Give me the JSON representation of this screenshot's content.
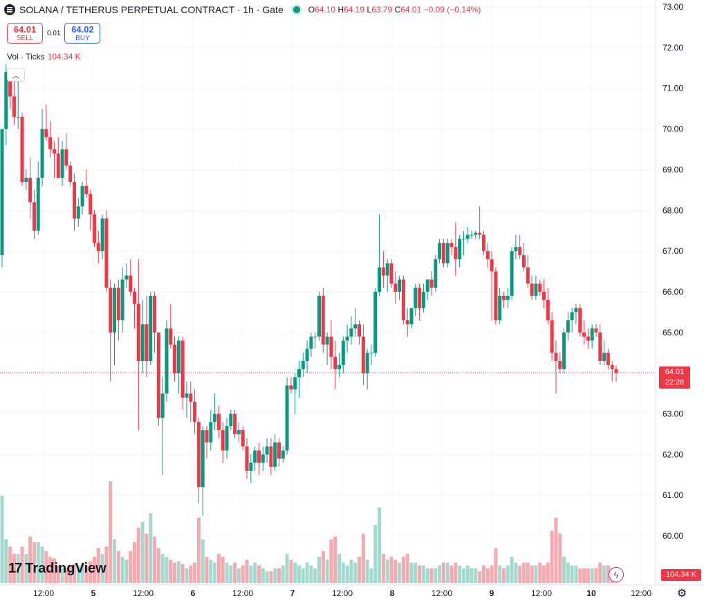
{
  "legend": {
    "title": "SOLANA / TETHERUS PERPETUAL CONTRACT · 1h · Gate",
    "open_label": "O",
    "open": "64.10",
    "high_label": "H",
    "high": "64.19",
    "low_label": "L",
    "low": "63.79",
    "close_label": "C",
    "close": "64.01",
    "change": "−0.09 (−0.14%)"
  },
  "trade": {
    "sell_price": "64.01",
    "sell_label": "SELL",
    "spread": "0.01",
    "buy_price": "64.02",
    "buy_label": "BUY"
  },
  "volume": {
    "label": "Vol · Ticks",
    "value": "104.34 K"
  },
  "collapse_glyph": "︿",
  "logo": {
    "icon": "17",
    "text": "TradingView"
  },
  "last_price": {
    "price": "64.01",
    "countdown": "22:28"
  },
  "volume_tag": "104.34 K",
  "flash_glyph": "ϟ",
  "settings_glyph": "⚙",
  "colors": {
    "up": "#089981",
    "down": "#f23645",
    "up_vol": "#a3d9cf",
    "down_vol": "#f6a9ae",
    "grid": "#f0f3fa"
  },
  "chart_data": {
    "type": "candlestick",
    "timeframe": "1h",
    "y_ticks": [
      "60.00",
      "61.00",
      "62.00",
      "63.00",
      "64.00",
      "65.00",
      "66.00",
      "67.00",
      "68.00",
      "69.00",
      "70.00",
      "71.00",
      "72.00",
      "73.00"
    ],
    "x_ticks": [
      "12:00",
      "5",
      "12:00",
      "6",
      "12:00",
      "7",
      "12:00",
      "8",
      "12:00",
      "9",
      "12:00",
      "10",
      "12:00"
    ],
    "last_price": 64.01,
    "candles": [
      {
        "o": 66.9,
        "h": 70.0,
        "l": 66.6,
        "c": 70.0,
        "v": 0.6
      },
      {
        "o": 70.0,
        "h": 71.6,
        "l": 69.6,
        "c": 71.4,
        "v": 0.3
      },
      {
        "o": 71.4,
        "h": 71.5,
        "l": 70.5,
        "c": 70.8,
        "v": 0.25
      },
      {
        "o": 70.8,
        "h": 71.2,
        "l": 70.1,
        "c": 70.3,
        "v": 0.2
      },
      {
        "o": 70.3,
        "h": 71.2,
        "l": 70.0,
        "c": 70.3,
        "v": 0.2
      },
      {
        "o": 70.3,
        "h": 70.4,
        "l": 68.6,
        "c": 68.7,
        "v": 0.25
      },
      {
        "o": 68.7,
        "h": 69.0,
        "l": 68.5,
        "c": 68.8,
        "v": 0.2
      },
      {
        "o": 68.8,
        "h": 69.3,
        "l": 67.8,
        "c": 68.2,
        "v": 0.32
      },
      {
        "o": 68.2,
        "h": 68.5,
        "l": 67.3,
        "c": 67.5,
        "v": 0.28
      },
      {
        "o": 67.5,
        "h": 69.2,
        "l": 67.4,
        "c": 68.8,
        "v": 0.28
      },
      {
        "o": 68.8,
        "h": 70.5,
        "l": 68.6,
        "c": 70.0,
        "v": 0.25
      },
      {
        "o": 70.0,
        "h": 70.6,
        "l": 69.7,
        "c": 69.8,
        "v": 0.22
      },
      {
        "o": 69.8,
        "h": 70.2,
        "l": 69.3,
        "c": 69.5,
        "v": 0.18
      },
      {
        "o": 69.5,
        "h": 69.7,
        "l": 68.8,
        "c": 69.4,
        "v": 0.17
      },
      {
        "o": 69.4,
        "h": 69.8,
        "l": 68.8,
        "c": 68.8,
        "v": 0.12
      },
      {
        "o": 68.8,
        "h": 69.7,
        "l": 68.6,
        "c": 69.5,
        "v": 0.1
      },
      {
        "o": 69.5,
        "h": 69.9,
        "l": 69.0,
        "c": 69.1,
        "v": 0.1
      },
      {
        "o": 69.1,
        "h": 69.2,
        "l": 68.6,
        "c": 68.7,
        "v": 0.12
      },
      {
        "o": 68.7,
        "h": 68.9,
        "l": 67.5,
        "c": 67.8,
        "v": 0.13
      },
      {
        "o": 67.8,
        "h": 68.3,
        "l": 67.6,
        "c": 68.1,
        "v": 0.12
      },
      {
        "o": 68.1,
        "h": 68.7,
        "l": 67.9,
        "c": 68.6,
        "v": 0.13
      },
      {
        "o": 68.6,
        "h": 69.0,
        "l": 68.3,
        "c": 68.4,
        "v": 0.12
      },
      {
        "o": 68.4,
        "h": 68.5,
        "l": 67.5,
        "c": 67.9,
        "v": 0.15
      },
      {
        "o": 67.9,
        "h": 68.0,
        "l": 67.1,
        "c": 67.2,
        "v": 0.18
      },
      {
        "o": 67.2,
        "h": 67.5,
        "l": 66.7,
        "c": 67.0,
        "v": 0.24
      },
      {
        "o": 67.0,
        "h": 67.9,
        "l": 66.8,
        "c": 67.8,
        "v": 0.2
      },
      {
        "o": 67.8,
        "h": 68.0,
        "l": 66.0,
        "c": 66.1,
        "v": 0.25
      },
      {
        "o": 66.1,
        "h": 66.3,
        "l": 63.8,
        "c": 65.0,
        "v": 0.7
      },
      {
        "o": 65.0,
        "h": 66.2,
        "l": 64.2,
        "c": 66.1,
        "v": 0.3
      },
      {
        "o": 66.1,
        "h": 66.3,
        "l": 64.8,
        "c": 65.3,
        "v": 0.22
      },
      {
        "o": 65.3,
        "h": 66.6,
        "l": 65.0,
        "c": 66.3,
        "v": 0.18
      },
      {
        "o": 66.3,
        "h": 66.7,
        "l": 66.1,
        "c": 66.4,
        "v": 0.16
      },
      {
        "o": 66.4,
        "h": 66.8,
        "l": 65.9,
        "c": 66.0,
        "v": 0.22
      },
      {
        "o": 66.0,
        "h": 66.1,
        "l": 65.1,
        "c": 65.7,
        "v": 0.28
      },
      {
        "o": 65.7,
        "h": 66.8,
        "l": 62.6,
        "c": 64.3,
        "v": 0.38
      },
      {
        "o": 64.3,
        "h": 65.8,
        "l": 64.0,
        "c": 65.2,
        "v": 0.42
      },
      {
        "o": 65.2,
        "h": 65.9,
        "l": 63.9,
        "c": 64.3,
        "v": 0.34
      },
      {
        "o": 64.3,
        "h": 66.0,
        "l": 64.2,
        "c": 65.9,
        "v": 0.48
      },
      {
        "o": 65.9,
        "h": 66.0,
        "l": 64.5,
        "c": 65.0,
        "v": 0.32
      },
      {
        "o": 65.0,
        "h": 65.0,
        "l": 62.7,
        "c": 62.9,
        "v": 0.24
      },
      {
        "o": 62.9,
        "h": 63.9,
        "l": 61.5,
        "c": 63.5,
        "v": 0.2
      },
      {
        "o": 63.5,
        "h": 65.3,
        "l": 63.3,
        "c": 65.1,
        "v": 0.18
      },
      {
        "o": 65.1,
        "h": 65.7,
        "l": 64.6,
        "c": 64.7,
        "v": 0.16
      },
      {
        "o": 64.7,
        "h": 64.9,
        "l": 63.8,
        "c": 64.0,
        "v": 0.14
      },
      {
        "o": 64.0,
        "h": 64.9,
        "l": 63.5,
        "c": 64.8,
        "v": 0.15
      },
      {
        "o": 64.8,
        "h": 64.9,
        "l": 63.1,
        "c": 63.4,
        "v": 0.13
      },
      {
        "o": 63.4,
        "h": 63.8,
        "l": 62.9,
        "c": 63.5,
        "v": 0.1
      },
      {
        "o": 63.5,
        "h": 63.8,
        "l": 62.8,
        "c": 63.3,
        "v": 0.12
      },
      {
        "o": 63.3,
        "h": 63.6,
        "l": 62.5,
        "c": 62.8,
        "v": 0.14
      },
      {
        "o": 62.8,
        "h": 62.9,
        "l": 60.8,
        "c": 61.2,
        "v": 0.45
      },
      {
        "o": 61.2,
        "h": 62.7,
        "l": 60.5,
        "c": 62.6,
        "v": 0.3
      },
      {
        "o": 62.6,
        "h": 62.7,
        "l": 61.9,
        "c": 62.3,
        "v": 0.18
      },
      {
        "o": 62.3,
        "h": 63.1,
        "l": 62.1,
        "c": 62.8,
        "v": 0.16
      },
      {
        "o": 62.8,
        "h": 63.5,
        "l": 62.6,
        "c": 63.0,
        "v": 0.14
      },
      {
        "o": 63.0,
        "h": 63.2,
        "l": 62.4,
        "c": 62.6,
        "v": 0.2
      },
      {
        "o": 62.6,
        "h": 62.8,
        "l": 61.8,
        "c": 62.1,
        "v": 0.18
      },
      {
        "o": 62.1,
        "h": 62.9,
        "l": 61.9,
        "c": 62.7,
        "v": 0.14
      },
      {
        "o": 62.7,
        "h": 63.1,
        "l": 62.6,
        "c": 63.0,
        "v": 0.12
      },
      {
        "o": 63.0,
        "h": 63.1,
        "l": 62.4,
        "c": 62.5,
        "v": 0.14
      },
      {
        "o": 62.5,
        "h": 62.8,
        "l": 62.3,
        "c": 62.6,
        "v": 0.1
      },
      {
        "o": 62.6,
        "h": 62.7,
        "l": 62.1,
        "c": 62.2,
        "v": 0.12
      },
      {
        "o": 62.2,
        "h": 62.4,
        "l": 61.4,
        "c": 61.6,
        "v": 0.16
      },
      {
        "o": 61.6,
        "h": 62.0,
        "l": 61.3,
        "c": 61.8,
        "v": 0.12
      },
      {
        "o": 61.8,
        "h": 62.2,
        "l": 61.6,
        "c": 62.1,
        "v": 0.14
      },
      {
        "o": 62.1,
        "h": 62.3,
        "l": 61.5,
        "c": 61.8,
        "v": 0.12
      },
      {
        "o": 61.8,
        "h": 62.2,
        "l": 61.6,
        "c": 62.0,
        "v": 0.1
      },
      {
        "o": 62.0,
        "h": 62.4,
        "l": 61.8,
        "c": 62.2,
        "v": 0.08
      },
      {
        "o": 62.2,
        "h": 62.4,
        "l": 61.5,
        "c": 61.7,
        "v": 0.08
      },
      {
        "o": 61.7,
        "h": 62.5,
        "l": 61.6,
        "c": 62.3,
        "v": 0.1
      },
      {
        "o": 62.3,
        "h": 62.4,
        "l": 61.7,
        "c": 61.9,
        "v": 0.1
      },
      {
        "o": 61.9,
        "h": 62.2,
        "l": 61.8,
        "c": 62.1,
        "v": 0.12
      },
      {
        "o": 62.1,
        "h": 63.9,
        "l": 62.0,
        "c": 63.7,
        "v": 0.2
      },
      {
        "o": 63.7,
        "h": 63.9,
        "l": 63.5,
        "c": 63.6,
        "v": 0.16
      },
      {
        "o": 63.6,
        "h": 64.0,
        "l": 63.0,
        "c": 63.9,
        "v": 0.14
      },
      {
        "o": 63.9,
        "h": 64.3,
        "l": 63.4,
        "c": 64.1,
        "v": 0.12
      },
      {
        "o": 64.1,
        "h": 64.5,
        "l": 63.9,
        "c": 64.3,
        "v": 0.1
      },
      {
        "o": 64.3,
        "h": 64.8,
        "l": 64.0,
        "c": 64.6,
        "v": 0.14
      },
      {
        "o": 64.6,
        "h": 65.0,
        "l": 64.4,
        "c": 64.9,
        "v": 0.12
      },
      {
        "o": 64.9,
        "h": 65.0,
        "l": 64.6,
        "c": 64.9,
        "v": 0.1
      },
      {
        "o": 64.9,
        "h": 66.0,
        "l": 64.8,
        "c": 65.9,
        "v": 0.18
      },
      {
        "o": 65.9,
        "h": 66.1,
        "l": 64.5,
        "c": 64.7,
        "v": 0.22
      },
      {
        "o": 64.7,
        "h": 65.0,
        "l": 64.2,
        "c": 64.9,
        "v": 0.16
      },
      {
        "o": 64.9,
        "h": 65.3,
        "l": 64.1,
        "c": 64.4,
        "v": 0.3
      },
      {
        "o": 64.4,
        "h": 64.8,
        "l": 63.6,
        "c": 64.1,
        "v": 0.32
      },
      {
        "o": 64.1,
        "h": 64.5,
        "l": 63.9,
        "c": 64.2,
        "v": 0.2
      },
      {
        "o": 64.2,
        "h": 64.9,
        "l": 64.0,
        "c": 64.8,
        "v": 0.14
      },
      {
        "o": 64.8,
        "h": 65.2,
        "l": 64.5,
        "c": 64.9,
        "v": 0.12
      },
      {
        "o": 64.9,
        "h": 65.4,
        "l": 64.7,
        "c": 65.1,
        "v": 0.16
      },
      {
        "o": 65.1,
        "h": 65.6,
        "l": 64.9,
        "c": 65.2,
        "v": 0.14
      },
      {
        "o": 65.2,
        "h": 65.3,
        "l": 64.7,
        "c": 64.9,
        "v": 0.18
      },
      {
        "o": 64.9,
        "h": 65.2,
        "l": 63.7,
        "c": 64.0,
        "v": 0.34
      },
      {
        "o": 64.0,
        "h": 64.6,
        "l": 63.6,
        "c": 64.5,
        "v": 0.16
      },
      {
        "o": 64.5,
        "h": 64.7,
        "l": 64.2,
        "c": 64.5,
        "v": 0.1
      },
      {
        "o": 64.5,
        "h": 66.1,
        "l": 64.4,
        "c": 66.0,
        "v": 0.4
      },
      {
        "o": 66.0,
        "h": 67.9,
        "l": 65.9,
        "c": 66.6,
        "v": 0.52
      },
      {
        "o": 66.6,
        "h": 67.0,
        "l": 66.1,
        "c": 66.4,
        "v": 0.2
      },
      {
        "o": 66.4,
        "h": 66.8,
        "l": 66.0,
        "c": 66.7,
        "v": 0.16
      },
      {
        "o": 66.7,
        "h": 66.8,
        "l": 66.1,
        "c": 66.2,
        "v": 0.18
      },
      {
        "o": 66.2,
        "h": 66.5,
        "l": 65.7,
        "c": 66.0,
        "v": 0.16
      },
      {
        "o": 66.0,
        "h": 66.4,
        "l": 65.8,
        "c": 66.3,
        "v": 0.14
      },
      {
        "o": 66.3,
        "h": 66.4,
        "l": 65.2,
        "c": 65.3,
        "v": 0.18
      },
      {
        "o": 65.3,
        "h": 65.6,
        "l": 64.9,
        "c": 65.2,
        "v": 0.2
      },
      {
        "o": 65.2,
        "h": 65.6,
        "l": 65.1,
        "c": 65.6,
        "v": 0.14
      },
      {
        "o": 65.6,
        "h": 66.2,
        "l": 65.4,
        "c": 66.1,
        "v": 0.14
      },
      {
        "o": 66.1,
        "h": 66.2,
        "l": 65.3,
        "c": 65.6,
        "v": 0.12
      },
      {
        "o": 65.6,
        "h": 66.2,
        "l": 65.5,
        "c": 66.0,
        "v": 0.12
      },
      {
        "o": 66.0,
        "h": 66.3,
        "l": 65.8,
        "c": 66.3,
        "v": 0.1
      },
      {
        "o": 66.3,
        "h": 66.5,
        "l": 65.9,
        "c": 66.1,
        "v": 0.1
      },
      {
        "o": 66.1,
        "h": 66.9,
        "l": 66.0,
        "c": 66.8,
        "v": 0.1
      },
      {
        "o": 66.8,
        "h": 67.3,
        "l": 66.7,
        "c": 67.2,
        "v": 0.12
      },
      {
        "o": 67.2,
        "h": 67.3,
        "l": 66.6,
        "c": 66.7,
        "v": 0.14
      },
      {
        "o": 66.7,
        "h": 67.3,
        "l": 66.6,
        "c": 67.2,
        "v": 0.14
      },
      {
        "o": 67.2,
        "h": 67.3,
        "l": 66.9,
        "c": 67.1,
        "v": 0.12
      },
      {
        "o": 67.1,
        "h": 67.7,
        "l": 66.4,
        "c": 66.8,
        "v": 0.14
      },
      {
        "o": 66.8,
        "h": 67.4,
        "l": 66.6,
        "c": 67.3,
        "v": 0.12
      },
      {
        "o": 67.3,
        "h": 67.5,
        "l": 66.9,
        "c": 67.3,
        "v": 0.1
      },
      {
        "o": 67.3,
        "h": 67.6,
        "l": 67.2,
        "c": 67.4,
        "v": 0.12
      },
      {
        "o": 67.4,
        "h": 67.5,
        "l": 67.3,
        "c": 67.4,
        "v": 0.1
      },
      {
        "o": 67.4,
        "h": 67.5,
        "l": 67.3,
        "c": 67.45,
        "v": 0.1
      },
      {
        "o": 67.45,
        "h": 68.1,
        "l": 67.3,
        "c": 67.4,
        "v": 0.08
      },
      {
        "o": 67.4,
        "h": 67.5,
        "l": 66.9,
        "c": 67.0,
        "v": 0.12
      },
      {
        "o": 67.0,
        "h": 67.2,
        "l": 66.6,
        "c": 66.8,
        "v": 0.1
      },
      {
        "o": 66.8,
        "h": 67.0,
        "l": 65.3,
        "c": 66.5,
        "v": 0.12
      },
      {
        "o": 66.5,
        "h": 66.6,
        "l": 65.2,
        "c": 65.3,
        "v": 0.24
      },
      {
        "o": 65.3,
        "h": 66.1,
        "l": 65.2,
        "c": 65.9,
        "v": 0.12
      },
      {
        "o": 65.9,
        "h": 66.0,
        "l": 65.6,
        "c": 65.8,
        "v": 0.1
      },
      {
        "o": 65.8,
        "h": 66.1,
        "l": 65.6,
        "c": 65.9,
        "v": 0.12
      },
      {
        "o": 65.9,
        "h": 67.1,
        "l": 65.8,
        "c": 67.0,
        "v": 0.18
      },
      {
        "o": 67.0,
        "h": 67.4,
        "l": 66.8,
        "c": 67.1,
        "v": 0.14
      },
      {
        "o": 67.1,
        "h": 67.4,
        "l": 66.8,
        "c": 66.9,
        "v": 0.12
      },
      {
        "o": 66.9,
        "h": 67.2,
        "l": 66.5,
        "c": 66.6,
        "v": 0.14
      },
      {
        "o": 66.6,
        "h": 66.9,
        "l": 66.1,
        "c": 66.2,
        "v": 0.14
      },
      {
        "o": 66.2,
        "h": 66.4,
        "l": 65.8,
        "c": 65.9,
        "v": 0.12
      },
      {
        "o": 65.9,
        "h": 66.4,
        "l": 65.8,
        "c": 66.2,
        "v": 0.12
      },
      {
        "o": 66.2,
        "h": 66.3,
        "l": 65.9,
        "c": 66.0,
        "v": 0.14
      },
      {
        "o": 66.0,
        "h": 66.3,
        "l": 65.6,
        "c": 65.8,
        "v": 0.12
      },
      {
        "o": 65.8,
        "h": 66.1,
        "l": 65.2,
        "c": 65.3,
        "v": 0.14
      },
      {
        "o": 65.3,
        "h": 65.5,
        "l": 64.3,
        "c": 64.5,
        "v": 0.36
      },
      {
        "o": 64.5,
        "h": 64.8,
        "l": 63.5,
        "c": 64.3,
        "v": 0.45
      },
      {
        "o": 64.3,
        "h": 64.5,
        "l": 64.0,
        "c": 64.1,
        "v": 0.34
      },
      {
        "o": 64.1,
        "h": 65.1,
        "l": 64.0,
        "c": 65.0,
        "v": 0.18
      },
      {
        "o": 65.0,
        "h": 65.5,
        "l": 64.8,
        "c": 65.3,
        "v": 0.14
      },
      {
        "o": 65.3,
        "h": 65.6,
        "l": 65.0,
        "c": 65.5,
        "v": 0.12
      },
      {
        "o": 65.5,
        "h": 65.7,
        "l": 65.2,
        "c": 65.6,
        "v": 0.12
      },
      {
        "o": 65.6,
        "h": 65.7,
        "l": 64.9,
        "c": 65.0,
        "v": 0.1
      },
      {
        "o": 65.0,
        "h": 65.3,
        "l": 64.7,
        "c": 64.9,
        "v": 0.1
      },
      {
        "o": 64.9,
        "h": 65.1,
        "l": 64.6,
        "c": 64.8,
        "v": 0.1
      },
      {
        "o": 64.8,
        "h": 65.2,
        "l": 64.6,
        "c": 65.1,
        "v": 0.1
      },
      {
        "o": 65.1,
        "h": 65.2,
        "l": 64.9,
        "c": 65.0,
        "v": 0.1
      },
      {
        "o": 65.0,
        "h": 65.2,
        "l": 64.2,
        "c": 64.3,
        "v": 0.14
      },
      {
        "o": 64.3,
        "h": 64.8,
        "l": 64.2,
        "c": 64.5,
        "v": 0.12
      },
      {
        "o": 64.5,
        "h": 64.6,
        "l": 64.1,
        "c": 64.2,
        "v": 0.12
      },
      {
        "o": 64.2,
        "h": 64.3,
        "l": 63.8,
        "c": 64.1,
        "v": 0.1
      },
      {
        "o": 64.1,
        "h": 64.19,
        "l": 63.79,
        "c": 64.01,
        "v": 0.08
      }
    ]
  }
}
